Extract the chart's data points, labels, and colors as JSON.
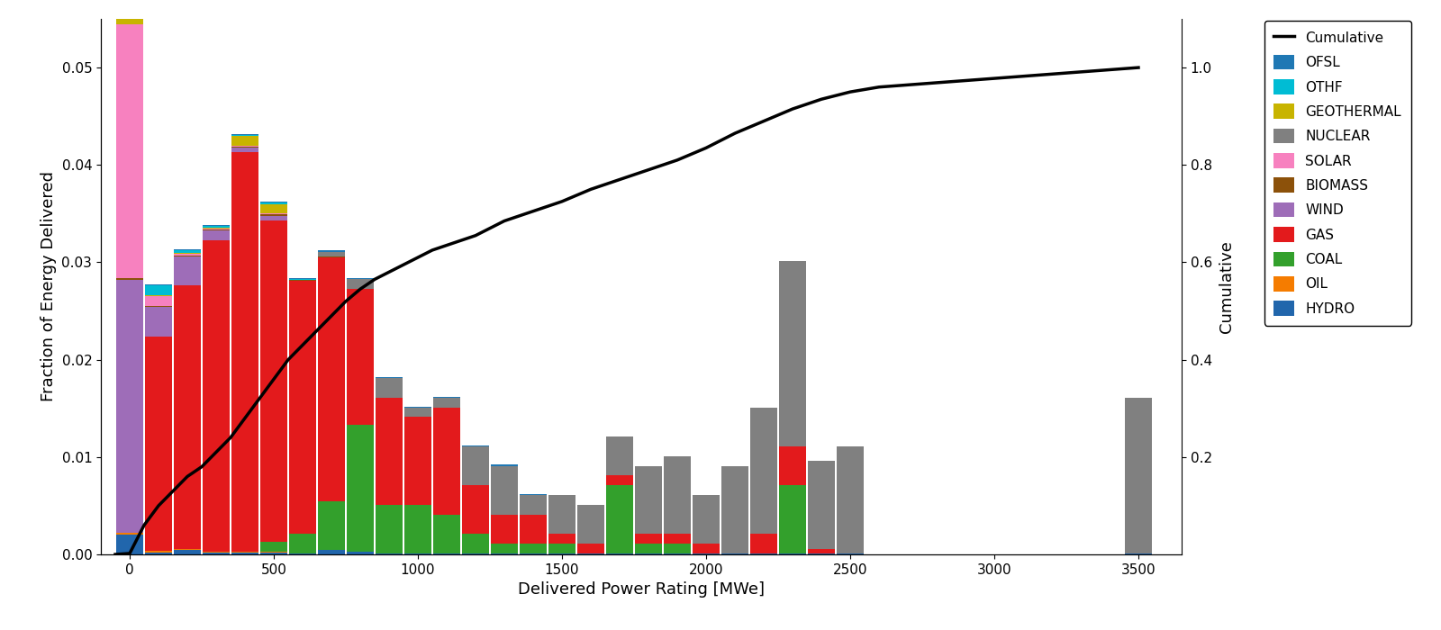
{
  "xlabel": "Delivered Power Rating [MWe]",
  "ylabel": "Fraction of Energy Delivered",
  "ylabel_right": "Cumulative",
  "bin_width": 100,
  "bin_centers": [
    0,
    100,
    200,
    300,
    400,
    500,
    600,
    700,
    800,
    900,
    1000,
    1100,
    1200,
    1300,
    1400,
    1500,
    1600,
    1700,
    1800,
    1900,
    2000,
    2100,
    2200,
    2300,
    2400,
    2500,
    3500
  ],
  "colors": {
    "HYDRO": "#2166ac",
    "OIL": "#f57c00",
    "COAL": "#33a02c",
    "GAS": "#e31a1c",
    "WIND": "#9e6db8",
    "BIOMASS": "#8c510a",
    "SOLAR": "#f781bf",
    "NUCLEAR": "#808080",
    "GEOTHERMAL": "#c8b400",
    "OTHF": "#00bcd4",
    "OFSL": "#1f78b4"
  },
  "bar_data": {
    "HYDRO": [
      0.002,
      0.0002,
      0.0005,
      0.0002,
      0.0002,
      0.0002,
      0.0001,
      0.0005,
      0.0003,
      0.0001,
      0.0001,
      0.0001,
      0.0001,
      0.0001,
      0.0001,
      0.0001,
      0.0001,
      0.0001,
      0.0001,
      0.0001,
      0.0001,
      0.0001,
      0.0001,
      0.0001,
      0.0001,
      0.0001,
      0.0001
    ],
    "OIL": [
      0.0002,
      0.0002,
      0.0001,
      0.0001,
      0.0001,
      0.0001,
      0.0,
      0.0,
      0.0,
      0.0,
      0.0,
      0.0,
      0.0,
      0.0,
      0.0,
      0.0,
      0.0,
      0.0,
      0.0,
      0.0,
      0.0,
      0.0,
      0.0,
      0.0,
      0.0,
      0.0,
      0.0
    ],
    "COAL": [
      0.0,
      0.0,
      0.0,
      0.0,
      0.0,
      0.001,
      0.002,
      0.005,
      0.013,
      0.005,
      0.005,
      0.004,
      0.002,
      0.001,
      0.001,
      0.001,
      0.0,
      0.007,
      0.001,
      0.001,
      0.0,
      0.0,
      0.0,
      0.007,
      0.0,
      0.0,
      0.0
    ],
    "GAS": [
      0.0,
      0.022,
      0.027,
      0.032,
      0.041,
      0.033,
      0.026,
      0.025,
      0.014,
      0.011,
      0.009,
      0.011,
      0.005,
      0.003,
      0.003,
      0.001,
      0.001,
      0.001,
      0.001,
      0.001,
      0.001,
      0.0,
      0.002,
      0.004,
      0.0005,
      0.0,
      0.0
    ],
    "WIND": [
      0.026,
      0.003,
      0.003,
      0.001,
      0.0005,
      0.0005,
      0.0,
      0.0,
      0.0,
      0.0,
      0.0,
      0.0,
      0.0,
      0.0,
      0.0,
      0.0,
      0.0,
      0.0,
      0.0,
      0.0,
      0.0,
      0.0,
      0.0,
      0.0,
      0.0,
      0.0,
      0.0
    ],
    "BIOMASS": [
      0.0002,
      0.0001,
      0.0001,
      0.0001,
      0.0001,
      0.0001,
      0.0001,
      0.0001,
      0.0,
      0.0,
      0.0,
      0.0,
      0.0,
      0.0,
      0.0,
      0.0,
      0.0,
      0.0,
      0.0,
      0.0,
      0.0,
      0.0,
      0.0,
      0.0,
      0.0,
      0.0,
      0.0
    ],
    "SOLAR": [
      0.026,
      0.001,
      0.0002,
      0.0001,
      0.0001,
      0.0001,
      0.0,
      0.0,
      0.0,
      0.0,
      0.0,
      0.0,
      0.0,
      0.0,
      0.0,
      0.0,
      0.0,
      0.0,
      0.0,
      0.0,
      0.0,
      0.0,
      0.0,
      0.0,
      0.0,
      0.0,
      0.0
    ],
    "NUCLEAR": [
      0.0,
      0.0,
      0.0,
      0.0,
      0.0,
      0.0,
      0.0,
      0.0005,
      0.001,
      0.002,
      0.001,
      0.001,
      0.004,
      0.005,
      0.002,
      0.004,
      0.004,
      0.004,
      0.007,
      0.008,
      0.005,
      0.009,
      0.013,
      0.019,
      0.009,
      0.011,
      0.016
    ],
    "GEOTHERMAL": [
      0.003,
      0.0001,
      0.0001,
      0.0001,
      0.001,
      0.001,
      0.0,
      0.0,
      0.0,
      0.0,
      0.0,
      0.0,
      0.0,
      0.0,
      0.0,
      0.0,
      0.0,
      0.0,
      0.0,
      0.0,
      0.0,
      0.0,
      0.0,
      0.0,
      0.0,
      0.0,
      0.0
    ],
    "OTHF": [
      0.003,
      0.001,
      0.0002,
      0.0001,
      0.0001,
      0.0001,
      0.0001,
      0.0,
      0.0,
      0.0,
      0.0,
      0.0,
      0.0,
      0.0,
      0.0,
      0.0,
      0.0,
      0.0,
      0.0,
      0.0,
      0.0,
      0.0,
      0.0,
      0.0,
      0.0,
      0.0,
      0.0
    ],
    "OFSL": [
      0.001,
      0.0001,
      0.0001,
      0.0001,
      0.0001,
      0.0001,
      0.0001,
      0.0001,
      0.0001,
      0.0001,
      0.0001,
      0.0001,
      0.0001,
      0.0001,
      0.0001,
      0.0,
      0.0,
      0.0,
      0.0,
      0.0,
      0.0,
      0.0,
      0.0,
      0.0,
      0.0,
      0.0,
      0.0
    ]
  },
  "cumulative_x": [
    -50,
    0,
    50,
    100,
    150,
    200,
    250,
    300,
    350,
    400,
    450,
    500,
    550,
    600,
    650,
    700,
    750,
    800,
    850,
    900,
    950,
    1000,
    1050,
    1100,
    1150,
    1200,
    1250,
    1300,
    1350,
    1400,
    1450,
    1500,
    1600,
    1700,
    1800,
    1900,
    2000,
    2100,
    2200,
    2300,
    2400,
    2500,
    2600,
    3500
  ],
  "cumulative_y": [
    0.0,
    0.002,
    0.06,
    0.1,
    0.13,
    0.16,
    0.18,
    0.21,
    0.24,
    0.28,
    0.32,
    0.36,
    0.4,
    0.43,
    0.46,
    0.49,
    0.52,
    0.545,
    0.565,
    0.58,
    0.595,
    0.61,
    0.625,
    0.635,
    0.645,
    0.655,
    0.67,
    0.685,
    0.695,
    0.705,
    0.715,
    0.725,
    0.75,
    0.77,
    0.79,
    0.81,
    0.835,
    0.865,
    0.89,
    0.915,
    0.935,
    0.95,
    0.96,
    1.0
  ],
  "xlim": [
    -100,
    3650
  ],
  "ylim_left": [
    0,
    0.055
  ],
  "ylim_right": [
    0.0,
    1.1
  ],
  "yticks_left": [
    0.0,
    0.01,
    0.02,
    0.03,
    0.04,
    0.05
  ],
  "yticks_right": [
    0.2,
    0.4,
    0.6,
    0.8,
    1.0
  ],
  "xticks": [
    0,
    500,
    1000,
    1500,
    2000,
    2500,
    3000,
    3500
  ]
}
